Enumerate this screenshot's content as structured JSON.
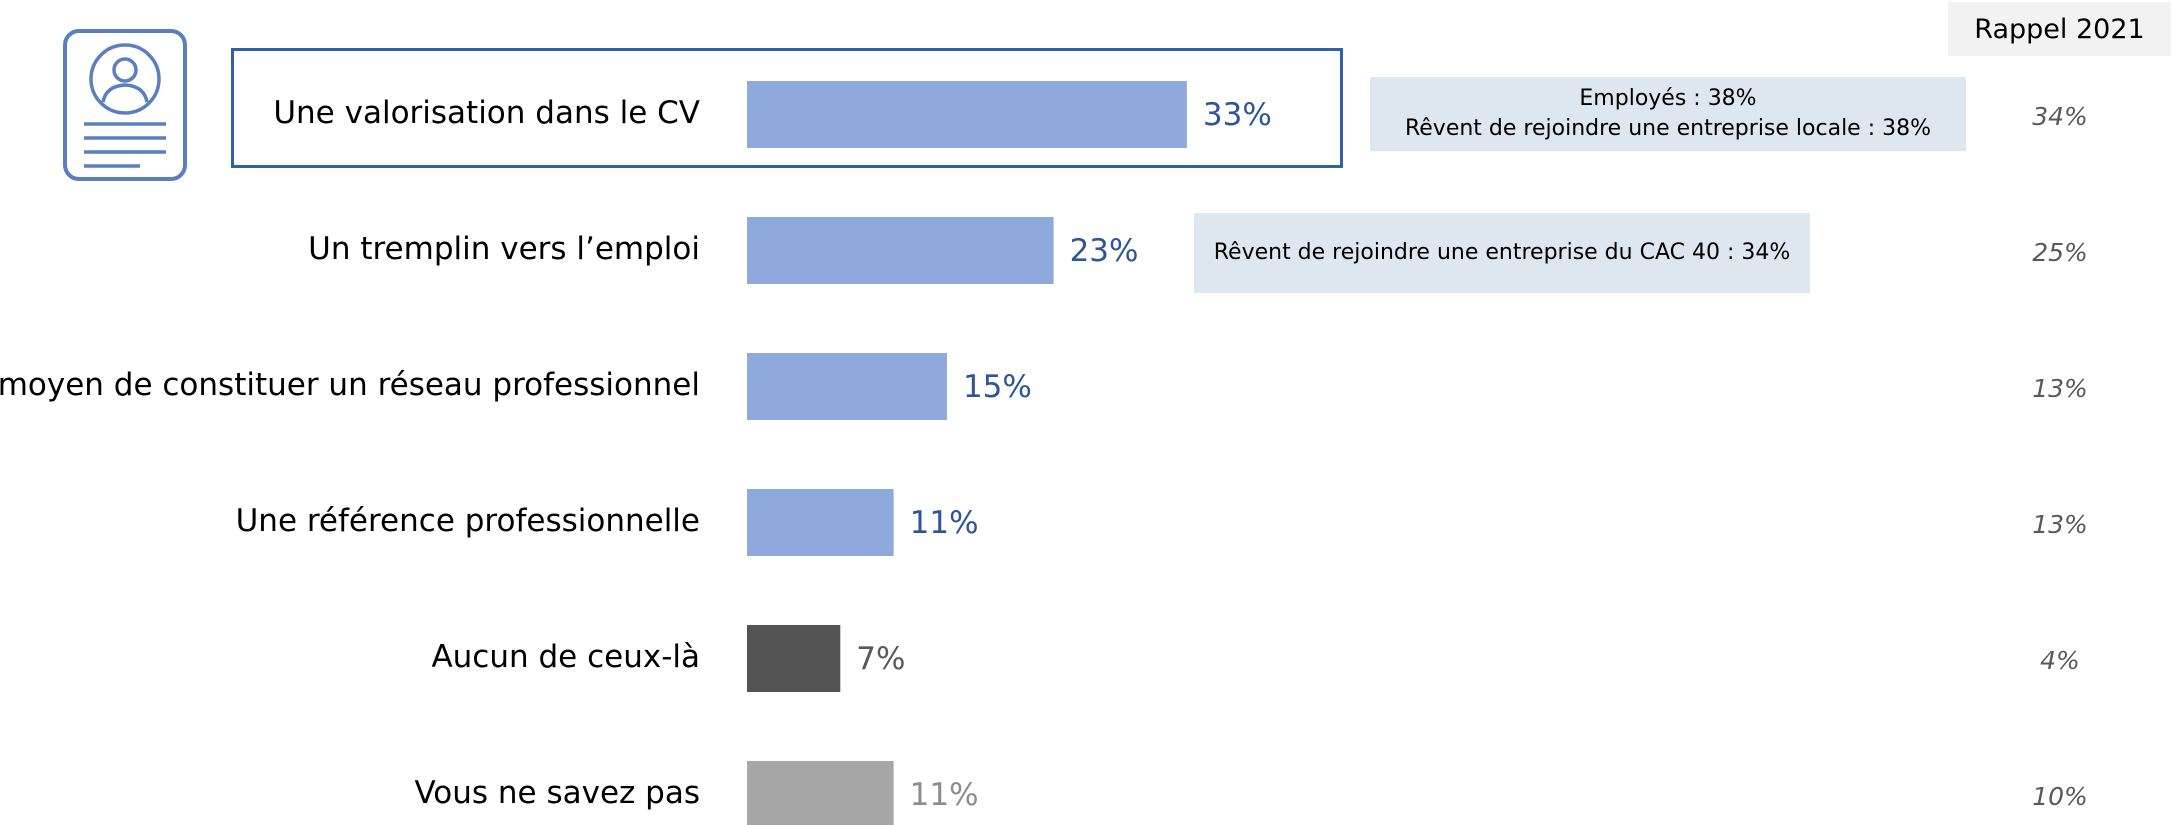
{
  "chart_data": {
    "type": "bar",
    "orientation": "horizontal",
    "categories": [
      "Une valorisation dans le CV",
      "Un tremplin vers l’emploi",
      "Un moyen de constituer un réseau professionnel",
      "Une référence professionnelle",
      "Aucun de ceux-là",
      "Vous ne savez pas"
    ],
    "values": [
      33,
      23,
      15,
      11,
      7,
      11
    ],
    "value_labels": [
      "33%",
      "23%",
      "15%",
      "11%",
      "7%",
      "11%"
    ],
    "bar_colors": [
      "#8eaadc",
      "#8eaadc",
      "#8eaadc",
      "#8eaadc",
      "#545454",
      "#a6a6a6"
    ],
    "label_colors": [
      "#2f5597",
      "#2f5597",
      "#2f5597",
      "#2f5597",
      "#595959",
      "#8c8c8c"
    ],
    "xlim": [
      0,
      100
    ],
    "grid": false,
    "highlighted_category": "Une valorisation dans le CV",
    "recall": {
      "header": "Rappel 2021",
      "values": [
        "34%",
        "25%",
        "13%",
        "13%",
        "4%",
        "10%"
      ]
    },
    "annotations": [
      {
        "category": "Une valorisation dans le CV",
        "lines": [
          "Employés : 38%",
          "Rêvent de rejoindre une entreprise locale : 38%"
        ]
      },
      {
        "category": "Un tremplin vers l’emploi",
        "lines": [
          "Rêvent de rejoindre une entreprise du CAC 40 : 34%"
        ]
      }
    ]
  },
  "colors": {
    "highlight_frame": "#2e62a8",
    "icon": "#5b7fbe",
    "annotation_bg": "#dee6f0",
    "recall_header_bg": "#f2f2f2"
  },
  "icons": {
    "cv": "cv-document-icon"
  }
}
